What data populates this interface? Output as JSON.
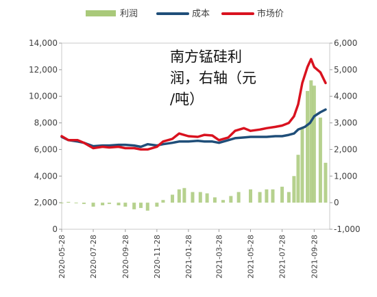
{
  "chart_data": {
    "type": "line",
    "title": "南方锰硅利润，右轴（元/吨）",
    "title_lines": [
      "南方锰硅利",
      "润，右轴（元",
      "/吨）"
    ],
    "x_dates": [
      "2020-05-28",
      "2020-07-28",
      "2020-09-28",
      "2020-11-28",
      "2021-01-28",
      "2021-03-28",
      "2021-05-28",
      "2021-07-28",
      "2021-09-28"
    ],
    "x_range": [
      "2020-05-28",
      "2021-10-28"
    ],
    "left_axis": {
      "ticks": [
        "0",
        "2,000",
        "4,000",
        "6,000",
        "8,000",
        "10,000",
        "12,000",
        "14,000"
      ],
      "min": 0,
      "max": 14000
    },
    "right_axis": {
      "ticks": [
        "-1,000",
        "0",
        "1,000",
        "2,000",
        "3,000",
        "4,000",
        "5,000",
        "6,000"
      ],
      "min": -1000,
      "max": 6000
    },
    "legend_position": "top",
    "colors": {
      "profit": "#a9c97a",
      "cost": "#1f4e79",
      "price": "#d9121f"
    },
    "series": [
      {
        "name": "利润",
        "type": "bar",
        "axis": "right",
        "points": [
          [
            "2020-05-28",
            0
          ],
          [
            "2020-06-10",
            30
          ],
          [
            "2020-06-25",
            0
          ],
          [
            "2020-07-10",
            -50
          ],
          [
            "2020-07-28",
            -150
          ],
          [
            "2020-08-15",
            -100
          ],
          [
            "2020-08-28",
            -50
          ],
          [
            "2020-09-15",
            -100
          ],
          [
            "2020-09-28",
            -150
          ],
          [
            "2020-10-15",
            -250
          ],
          [
            "2020-10-28",
            -200
          ],
          [
            "2020-11-10",
            -300
          ],
          [
            "2020-11-28",
            -150
          ],
          [
            "2020-12-10",
            100
          ],
          [
            "2020-12-28",
            300
          ],
          [
            "2021-01-10",
            500
          ],
          [
            "2021-01-20",
            550
          ],
          [
            "2021-02-05",
            400
          ],
          [
            "2021-02-20",
            400
          ],
          [
            "2021-03-05",
            350
          ],
          [
            "2021-03-20",
            200
          ],
          [
            "2021-04-05",
            100
          ],
          [
            "2021-04-20",
            250
          ],
          [
            "2021-05-05",
            400
          ],
          [
            "2021-05-28",
            500
          ],
          [
            "2021-06-15",
            400
          ],
          [
            "2021-06-28",
            500
          ],
          [
            "2021-07-10",
            500
          ],
          [
            "2021-07-28",
            600
          ],
          [
            "2021-08-10",
            400
          ],
          [
            "2021-08-20",
            1000
          ],
          [
            "2021-08-28",
            1800
          ],
          [
            "2021-09-05",
            2800
          ],
          [
            "2021-09-15",
            4200
          ],
          [
            "2021-09-22",
            4600
          ],
          [
            "2021-09-28",
            4400
          ],
          [
            "2021-10-10",
            3200
          ],
          [
            "2021-10-20",
            1500
          ]
        ]
      },
      {
        "name": "成本",
        "type": "line",
        "axis": "left",
        "points": [
          [
            "2020-05-28",
            6950
          ],
          [
            "2020-06-10",
            6700
          ],
          [
            "2020-06-28",
            6600
          ],
          [
            "2020-07-10",
            6500
          ],
          [
            "2020-07-28",
            6250
          ],
          [
            "2020-08-15",
            6300
          ],
          [
            "2020-08-28",
            6300
          ],
          [
            "2020-09-15",
            6350
          ],
          [
            "2020-09-28",
            6350
          ],
          [
            "2020-10-15",
            6300
          ],
          [
            "2020-10-28",
            6200
          ],
          [
            "2020-11-10",
            6400
          ],
          [
            "2020-11-28",
            6300
          ],
          [
            "2020-12-10",
            6400
          ],
          [
            "2020-12-28",
            6500
          ],
          [
            "2021-01-10",
            6600
          ],
          [
            "2021-01-28",
            6600
          ],
          [
            "2021-02-15",
            6650
          ],
          [
            "2021-02-28",
            6600
          ],
          [
            "2021-03-15",
            6600
          ],
          [
            "2021-03-28",
            6500
          ],
          [
            "2021-04-15",
            6700
          ],
          [
            "2021-04-28",
            6850
          ],
          [
            "2021-05-15",
            6900
          ],
          [
            "2021-05-28",
            6950
          ],
          [
            "2021-06-15",
            6950
          ],
          [
            "2021-06-28",
            6950
          ],
          [
            "2021-07-15",
            7000
          ],
          [
            "2021-07-28",
            7000
          ],
          [
            "2021-08-10",
            7100
          ],
          [
            "2021-08-20",
            7200
          ],
          [
            "2021-08-28",
            7500
          ],
          [
            "2021-09-10",
            7700
          ],
          [
            "2021-09-20",
            8000
          ],
          [
            "2021-09-28",
            8500
          ],
          [
            "2021-10-10",
            8800
          ],
          [
            "2021-10-20",
            9000
          ]
        ]
      },
      {
        "name": "市场价",
        "type": "line",
        "axis": "left",
        "points": [
          [
            "2020-05-28",
            7000
          ],
          [
            "2020-06-10",
            6700
          ],
          [
            "2020-06-28",
            6700
          ],
          [
            "2020-07-10",
            6500
          ],
          [
            "2020-07-28",
            6100
          ],
          [
            "2020-08-15",
            6200
          ],
          [
            "2020-08-28",
            6150
          ],
          [
            "2020-09-15",
            6200
          ],
          [
            "2020-09-28",
            6100
          ],
          [
            "2020-10-15",
            6100
          ],
          [
            "2020-10-28",
            6000
          ],
          [
            "2020-11-10",
            6000
          ],
          [
            "2020-11-28",
            6200
          ],
          [
            "2020-12-10",
            6600
          ],
          [
            "2020-12-28",
            6800
          ],
          [
            "2021-01-10",
            7200
          ],
          [
            "2021-01-28",
            7000
          ],
          [
            "2021-02-15",
            6950
          ],
          [
            "2021-02-28",
            7100
          ],
          [
            "2021-03-15",
            7050
          ],
          [
            "2021-03-28",
            6700
          ],
          [
            "2021-04-15",
            6900
          ],
          [
            "2021-04-28",
            7400
          ],
          [
            "2021-05-15",
            7600
          ],
          [
            "2021-05-28",
            7400
          ],
          [
            "2021-06-15",
            7500
          ],
          [
            "2021-06-28",
            7600
          ],
          [
            "2021-07-15",
            7700
          ],
          [
            "2021-07-28",
            7800
          ],
          [
            "2021-08-10",
            8000
          ],
          [
            "2021-08-20",
            8500
          ],
          [
            "2021-08-28",
            9400
          ],
          [
            "2021-09-05",
            11000
          ],
          [
            "2021-09-15",
            12200
          ],
          [
            "2021-09-22",
            12800
          ],
          [
            "2021-09-28",
            12200
          ],
          [
            "2021-10-10",
            11800
          ],
          [
            "2021-10-20",
            11000
          ]
        ]
      }
    ]
  }
}
